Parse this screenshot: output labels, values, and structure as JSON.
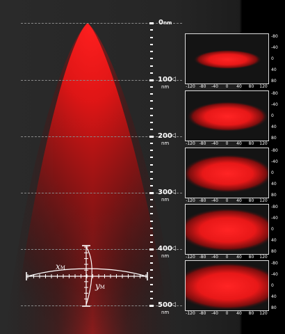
{
  "distance_marks": [
    {
      "value": "0",
      "unit": "nm"
    },
    {
      "value": "100",
      "unit": "nm"
    },
    {
      "value": "200",
      "unit": "nm"
    },
    {
      "value": "300",
      "unit": "nm"
    },
    {
      "value": "400",
      "unit": "nm"
    },
    {
      "value": "500",
      "unit": "nm"
    }
  ],
  "panels": [
    {
      "spot": {
        "rx": 0.3,
        "ry": 0.14
      }
    },
    {
      "spot": {
        "rx": 0.36,
        "ry": 0.22
      }
    },
    {
      "spot": {
        "rx": 0.4,
        "ry": 0.28
      }
    },
    {
      "spot": {
        "rx": 0.44,
        "ry": 0.32
      }
    },
    {
      "spot": {
        "rx": 0.48,
        "ry": 0.35
      }
    }
  ],
  "panel_x_ticks": [
    "-120",
    "-80",
    "-40",
    "0",
    "40",
    "80",
    "120"
  ],
  "panel_y_ticks": [
    "-80",
    "-40",
    "0",
    "40",
    "80"
  ],
  "axis_labels": {
    "x": "x",
    "x_sub": "M",
    "y": "y",
    "y_sub": "M"
  },
  "colors": {
    "beam": "#ff1a1a",
    "background": "#262626",
    "panel_border": "#dddddd"
  }
}
